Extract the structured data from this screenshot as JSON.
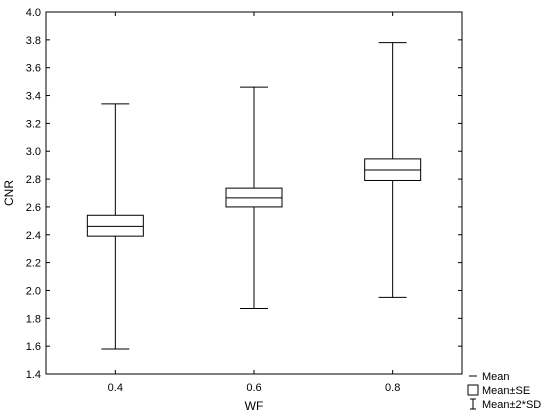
{
  "chart_data": {
    "type": "box",
    "xlabel": "WF",
    "ylabel": "CNR",
    "categories": [
      "0.4",
      "0.6",
      "0.8"
    ],
    "ylim": [
      1.4,
      4.0
    ],
    "yticks": [
      "1.4",
      "1.6",
      "1.8",
      "2.0",
      "2.2",
      "2.4",
      "2.6",
      "2.8",
      "3.0",
      "3.2",
      "3.4",
      "3.6",
      "3.8",
      "4.0"
    ],
    "boxes": [
      {
        "category": "0.4",
        "mean": 2.46,
        "se_low": 2.39,
        "se_high": 2.54,
        "sd_low": 1.58,
        "sd_high": 3.34
      },
      {
        "category": "0.6",
        "mean": 2.665,
        "se_low": 2.6,
        "se_high": 2.735,
        "sd_low": 1.87,
        "sd_high": 3.46
      },
      {
        "category": "0.8",
        "mean": 2.865,
        "se_low": 2.79,
        "se_high": 2.945,
        "sd_low": 1.95,
        "sd_high": 3.78
      }
    ],
    "legend": {
      "position": "bottom-right",
      "items": [
        "Mean",
        "Mean±SE",
        "Mean±2*SD"
      ]
    }
  }
}
